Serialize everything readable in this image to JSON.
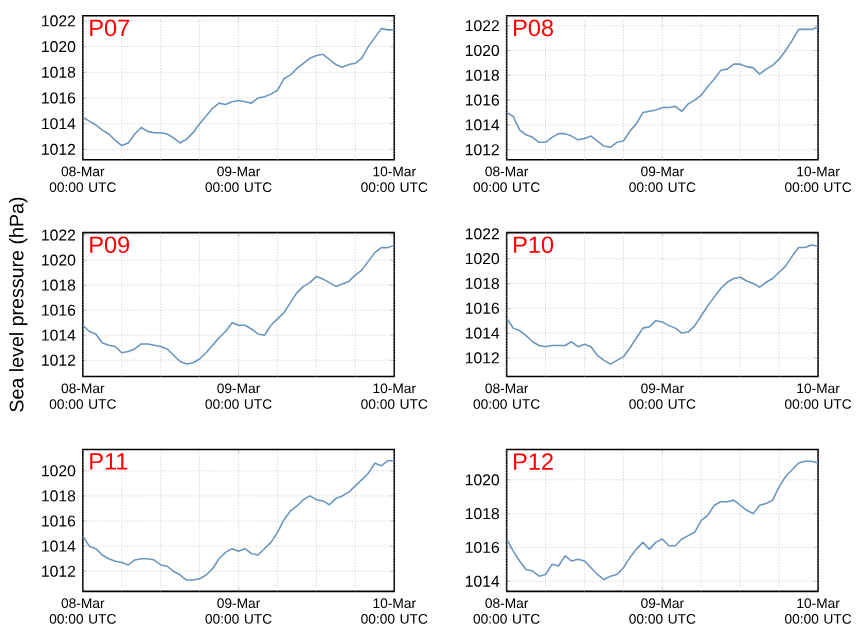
{
  "chart_data": [
    {
      "type": "line",
      "title": "P07",
      "color": "#6a96c0",
      "grid": true,
      "categories": [
        "08-Mar 00:00 UTC",
        null,
        null,
        null,
        null,
        null,
        null,
        null,
        null,
        null,
        null,
        null,
        null,
        null,
        null,
        null,
        null,
        null,
        null,
        null,
        null,
        null,
        null,
        null,
        "09-Mar 00:00 UTC",
        null,
        null,
        null,
        null,
        null,
        null,
        null,
        null,
        null,
        null,
        null,
        null,
        null,
        null,
        null,
        null,
        null,
        null,
        null,
        null,
        null,
        null,
        null,
        "10-Mar 00:00 UTC"
      ],
      "ylim": [
        1011.2,
        1022.4
      ],
      "yticks": [
        1012,
        1014,
        1016,
        1018,
        1020,
        1022
      ],
      "values": [
        1014.5,
        1014.2,
        1013.9,
        1013.5,
        1013.2,
        1012.7,
        1012.3,
        1012.5,
        1013.2,
        1013.7,
        1013.4,
        1013.3,
        1013.3,
        1013.2,
        1012.9,
        1012.5,
        1012.8,
        1013.3,
        1014.0,
        1014.6,
        1015.2,
        1015.6,
        1015.5,
        1015.7,
        1015.8,
        1015.7,
        1015.6,
        1016.0,
        1016.1,
        1016.3,
        1016.6,
        1017.5,
        1017.8,
        1018.3,
        1018.7,
        1019.1,
        1019.3,
        1019.4,
        1019.0,
        1018.6,
        1018.4,
        1018.6,
        1018.7,
        1019.1,
        1020.0,
        1020.7,
        1021.4,
        1021.3,
        1021.3
      ]
    },
    {
      "type": "line",
      "title": "P08",
      "color": "#6a96c0",
      "grid": true,
      "categories": [
        "08-Mar 00:00 UTC",
        null,
        null,
        null,
        null,
        null,
        null,
        null,
        null,
        null,
        null,
        null,
        null,
        null,
        null,
        null,
        null,
        null,
        null,
        null,
        null,
        null,
        null,
        null,
        "09-Mar 00:00 UTC",
        null,
        null,
        null,
        null,
        null,
        null,
        null,
        null,
        null,
        null,
        null,
        null,
        null,
        null,
        null,
        null,
        null,
        null,
        null,
        null,
        null,
        null,
        null,
        "10-Mar 00:00 UTC"
      ],
      "ylim": [
        1011.2,
        1022.8
      ],
      "yticks": [
        1012,
        1014,
        1016,
        1018,
        1020,
        1022
      ],
      "values": [
        1015.0,
        1014.7,
        1013.6,
        1013.2,
        1013.0,
        1012.6,
        1012.6,
        1013.0,
        1013.3,
        1013.3,
        1013.1,
        1012.8,
        1012.9,
        1013.1,
        1012.7,
        1012.3,
        1012.2,
        1012.6,
        1012.7,
        1013.5,
        1014.1,
        1015.0,
        1015.1,
        1015.2,
        1015.4,
        1015.4,
        1015.5,
        1015.1,
        1015.7,
        1016.0,
        1016.4,
        1017.1,
        1017.7,
        1018.4,
        1018.5,
        1018.9,
        1018.9,
        1018.7,
        1018.6,
        1018.1,
        1018.5,
        1018.8,
        1019.3,
        1020.0,
        1020.8,
        1021.7,
        1021.7,
        1021.7,
        1021.9
      ]
    },
    {
      "type": "line",
      "title": "P09",
      "ylabel": "Sea level pressure (hPa)",
      "color": "#6a96c0",
      "grid": true,
      "categories": [
        "08-Mar 00:00 UTC",
        null,
        null,
        null,
        null,
        null,
        null,
        null,
        null,
        null,
        null,
        null,
        null,
        null,
        null,
        null,
        null,
        null,
        null,
        null,
        null,
        null,
        null,
        null,
        "09-Mar 00:00 UTC",
        null,
        null,
        null,
        null,
        null,
        null,
        null,
        null,
        null,
        null,
        null,
        null,
        null,
        null,
        null,
        null,
        null,
        null,
        null,
        null,
        null,
        null,
        null,
        "10-Mar 00:00 UTC"
      ],
      "ylim": [
        1010.7,
        1022.2
      ],
      "yticks": [
        1012,
        1014,
        1016,
        1018,
        1020,
        1022
      ],
      "values": [
        1014.8,
        1014.3,
        1014.1,
        1013.4,
        1013.2,
        1013.1,
        1012.6,
        1012.7,
        1012.9,
        1013.3,
        1013.3,
        1013.2,
        1013.1,
        1012.9,
        1012.4,
        1011.9,
        1011.7,
        1011.8,
        1012.1,
        1012.6,
        1013.2,
        1013.8,
        1014.3,
        1015.0,
        1014.8,
        1014.8,
        1014.5,
        1014.1,
        1014.0,
        1014.8,
        1015.3,
        1015.8,
        1016.6,
        1017.4,
        1017.9,
        1018.2,
        1018.7,
        1018.5,
        1018.2,
        1017.9,
        1018.1,
        1018.3,
        1018.8,
        1019.2,
        1019.9,
        1020.6,
        1021.0,
        1021.0,
        1021.2
      ]
    },
    {
      "type": "line",
      "title": "P10",
      "color": "#6a96c0",
      "grid": true,
      "categories": [
        "08-Mar 00:00 UTC",
        null,
        null,
        null,
        null,
        null,
        null,
        null,
        null,
        null,
        null,
        null,
        null,
        null,
        null,
        null,
        null,
        null,
        null,
        null,
        null,
        null,
        null,
        null,
        "09-Mar 00:00 UTC",
        null,
        null,
        null,
        null,
        null,
        null,
        null,
        null,
        null,
        null,
        null,
        null,
        null,
        null,
        null,
        null,
        null,
        null,
        null,
        null,
        null,
        null,
        null,
        "10-Mar 00:00 UTC"
      ],
      "ylim": [
        1010.5,
        1022.1
      ],
      "yticks": [
        1012,
        1014,
        1016,
        1018,
        1020,
        1022
      ],
      "values": [
        1015.2,
        1014.4,
        1014.2,
        1013.8,
        1013.3,
        1013.0,
        1012.9,
        1013.0,
        1013.0,
        1013.0,
        1013.3,
        1012.9,
        1013.1,
        1012.9,
        1012.2,
        1011.8,
        1011.5,
        1011.8,
        1012.1,
        1012.8,
        1013.6,
        1014.4,
        1014.5,
        1015.0,
        1014.9,
        1014.6,
        1014.4,
        1014.0,
        1014.1,
        1014.6,
        1015.4,
        1016.2,
        1016.9,
        1017.6,
        1018.1,
        1018.4,
        1018.5,
        1018.2,
        1018.0,
        1017.7,
        1018.1,
        1018.4,
        1018.9,
        1019.4,
        1020.2,
        1020.9,
        1020.9,
        1021.1,
        1021.0
      ]
    },
    {
      "type": "line",
      "title": "P11",
      "color": "#6a96c0",
      "grid": true,
      "categories": [
        "08-Mar 00:00 UTC",
        null,
        null,
        null,
        null,
        null,
        null,
        null,
        null,
        null,
        null,
        null,
        null,
        null,
        null,
        null,
        null,
        null,
        null,
        null,
        null,
        null,
        null,
        null,
        "09-Mar 00:00 UTC",
        null,
        null,
        null,
        null,
        null,
        null,
        null,
        null,
        null,
        null,
        null,
        null,
        null,
        null,
        null,
        null,
        null,
        null,
        null,
        null,
        null,
        null,
        null,
        "10-Mar 00:00 UTC"
      ],
      "ylim": [
        1010.4,
        1021.7
      ],
      "yticks": [
        1012,
        1014,
        1016,
        1018,
        1020
      ],
      "values": [
        1014.8,
        1014.0,
        1013.8,
        1013.3,
        1013.0,
        1012.8,
        1012.7,
        1012.5,
        1012.9,
        1013.0,
        1013.0,
        1012.9,
        1012.5,
        1012.4,
        1012.0,
        1011.7,
        1011.3,
        1011.3,
        1011.4,
        1011.7,
        1012.2,
        1013.0,
        1013.5,
        1013.8,
        1013.6,
        1013.8,
        1013.4,
        1013.3,
        1013.8,
        1014.3,
        1015.1,
        1016.1,
        1016.8,
        1017.2,
        1017.7,
        1018.0,
        1017.7,
        1017.6,
        1017.3,
        1017.8,
        1018.0,
        1018.3,
        1018.8,
        1019.3,
        1019.8,
        1020.6,
        1020.4,
        1020.8,
        1020.8
      ]
    },
    {
      "type": "line",
      "title": "P12",
      "color": "#6a96c0",
      "grid": true,
      "categories": [
        "08-Mar 00:00 UTC",
        null,
        null,
        null,
        null,
        null,
        null,
        null,
        null,
        null,
        null,
        null,
        null,
        null,
        null,
        null,
        null,
        null,
        null,
        null,
        null,
        null,
        null,
        null,
        "09-Mar 00:00 UTC",
        null,
        null,
        null,
        null,
        null,
        null,
        null,
        null,
        null,
        null,
        null,
        null,
        null,
        null,
        null,
        null,
        null,
        null,
        null,
        null,
        null,
        null,
        null,
        "10-Mar 00:00 UTC"
      ],
      "ylim": [
        1013.4,
        1021.8
      ],
      "yticks": [
        1014,
        1016,
        1018,
        1020
      ],
      "values": [
        1016.5,
        1015.8,
        1015.2,
        1014.7,
        1014.6,
        1014.3,
        1014.4,
        1015.0,
        1014.9,
        1015.5,
        1015.2,
        1015.3,
        1015.2,
        1014.8,
        1014.4,
        1014.1,
        1014.3,
        1014.4,
        1014.8,
        1015.4,
        1015.9,
        1016.3,
        1015.9,
        1016.3,
        1016.5,
        1016.1,
        1016.1,
        1016.5,
        1016.7,
        1016.9,
        1017.6,
        1017.9,
        1018.5,
        1018.7,
        1018.7,
        1018.8,
        1018.5,
        1018.2,
        1018.0,
        1018.5,
        1018.6,
        1018.8,
        1019.6,
        1020.2,
        1020.6,
        1021.0,
        1021.1,
        1021.1,
        1021.0
      ]
    }
  ]
}
